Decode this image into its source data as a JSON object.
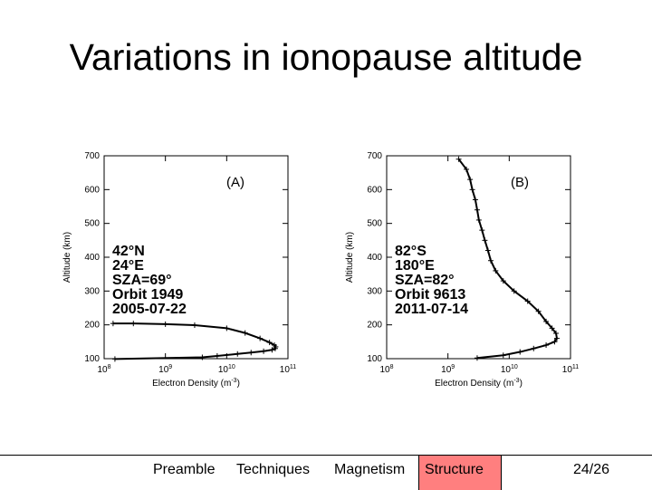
{
  "slide": {
    "title": "Variations in ionopause altitude"
  },
  "footer": {
    "nav": [
      "Preamble",
      "Techniques",
      "Magnetism",
      "Structure"
    ],
    "active_index": 3,
    "page": "24/26"
  },
  "colors": {
    "active_nav": "#ff7f7f",
    "plot": "#000000"
  },
  "chart_data": [
    {
      "type": "scatter",
      "panel_label": "(A)",
      "annotation": [
        "42°N",
        "24°E",
        "SZA=69°",
        "Orbit 1949",
        "2005-07-22"
      ],
      "xlabel": "Electron Density (m",
      "xlabel_exp": "-3",
      "xlabel_close": ")",
      "ylabel": "Altitude (km)",
      "x_scale": "log",
      "xlim": [
        100000000.0,
        100000000000.0
      ],
      "ylim": [
        100,
        700
      ],
      "xticks": [
        {
          "base": "10",
          "exp": "8",
          "value": 100000000.0
        },
        {
          "base": "10",
          "exp": "9",
          "value": 1000000000.0
        },
        {
          "base": "10",
          "exp": "10",
          "value": 10000000000.0
        },
        {
          "base": "10",
          "exp": "11",
          "value": 100000000000.0
        }
      ],
      "yticks": [
        "100",
        "200",
        "300",
        "400",
        "500",
        "600",
        "700"
      ],
      "grid": false,
      "x": [
        140000000.0,
        300000000.0,
        1000000000.0,
        3000000000.0,
        10000000000.0,
        20000000000.0,
        35000000000.0,
        50000000000.0,
        60000000000.0,
        63000000000.0,
        62000000000.0,
        55000000000.0,
        40000000000.0,
        25000000000.0,
        15000000000.0,
        7000000000.0,
        4000000000.0,
        150000000.0
      ],
      "y": [
        204,
        204,
        202,
        199,
        190,
        176,
        160,
        148,
        140,
        135,
        130,
        126,
        122,
        118,
        114,
        108,
        104,
        99
      ]
    },
    {
      "type": "scatter",
      "panel_label": "(B)",
      "annotation": [
        "82°S",
        "180°E",
        "SZA=82°",
        "Orbit 9613",
        "2011-07-14"
      ],
      "xlabel": "Electron Density (m",
      "xlabel_exp": "-3",
      "xlabel_close": ")",
      "ylabel": "Altitude (km)",
      "x_scale": "log",
      "xlim": [
        100000000.0,
        100000000000.0
      ],
      "ylim": [
        100,
        700
      ],
      "xticks": [
        {
          "base": "10",
          "exp": "8",
          "value": 100000000.0
        },
        {
          "base": "10",
          "exp": "9",
          "value": 1000000000.0
        },
        {
          "base": "10",
          "exp": "10",
          "value": 10000000000.0
        },
        {
          "base": "10",
          "exp": "11",
          "value": 100000000000.0
        }
      ],
      "yticks": [
        "100",
        "200",
        "300",
        "400",
        "500",
        "600",
        "700"
      ],
      "grid": false,
      "x": [
        1500000000.0,
        2000000000.0,
        2300000000.0,
        2500000000.0,
        2800000000.0,
        3000000000.0,
        3200000000.0,
        3600000000.0,
        4000000000.0,
        4500000000.0,
        5000000000.0,
        6000000000.0,
        8000000000.0,
        12000000000.0,
        20000000000.0,
        30000000000.0,
        40000000000.0,
        50000000000.0,
        58000000000.0,
        60000000000.0,
        55000000000.0,
        40000000000.0,
        25000000000.0,
        15000000000.0,
        8000000000.0,
        3000000000.0
      ],
      "y": [
        690,
        660,
        630,
        600,
        570,
        540,
        510,
        480,
        450,
        420,
        390,
        360,
        330,
        300,
        270,
        240,
        210,
        190,
        175,
        160,
        150,
        140,
        130,
        120,
        110,
        102
      ]
    }
  ]
}
